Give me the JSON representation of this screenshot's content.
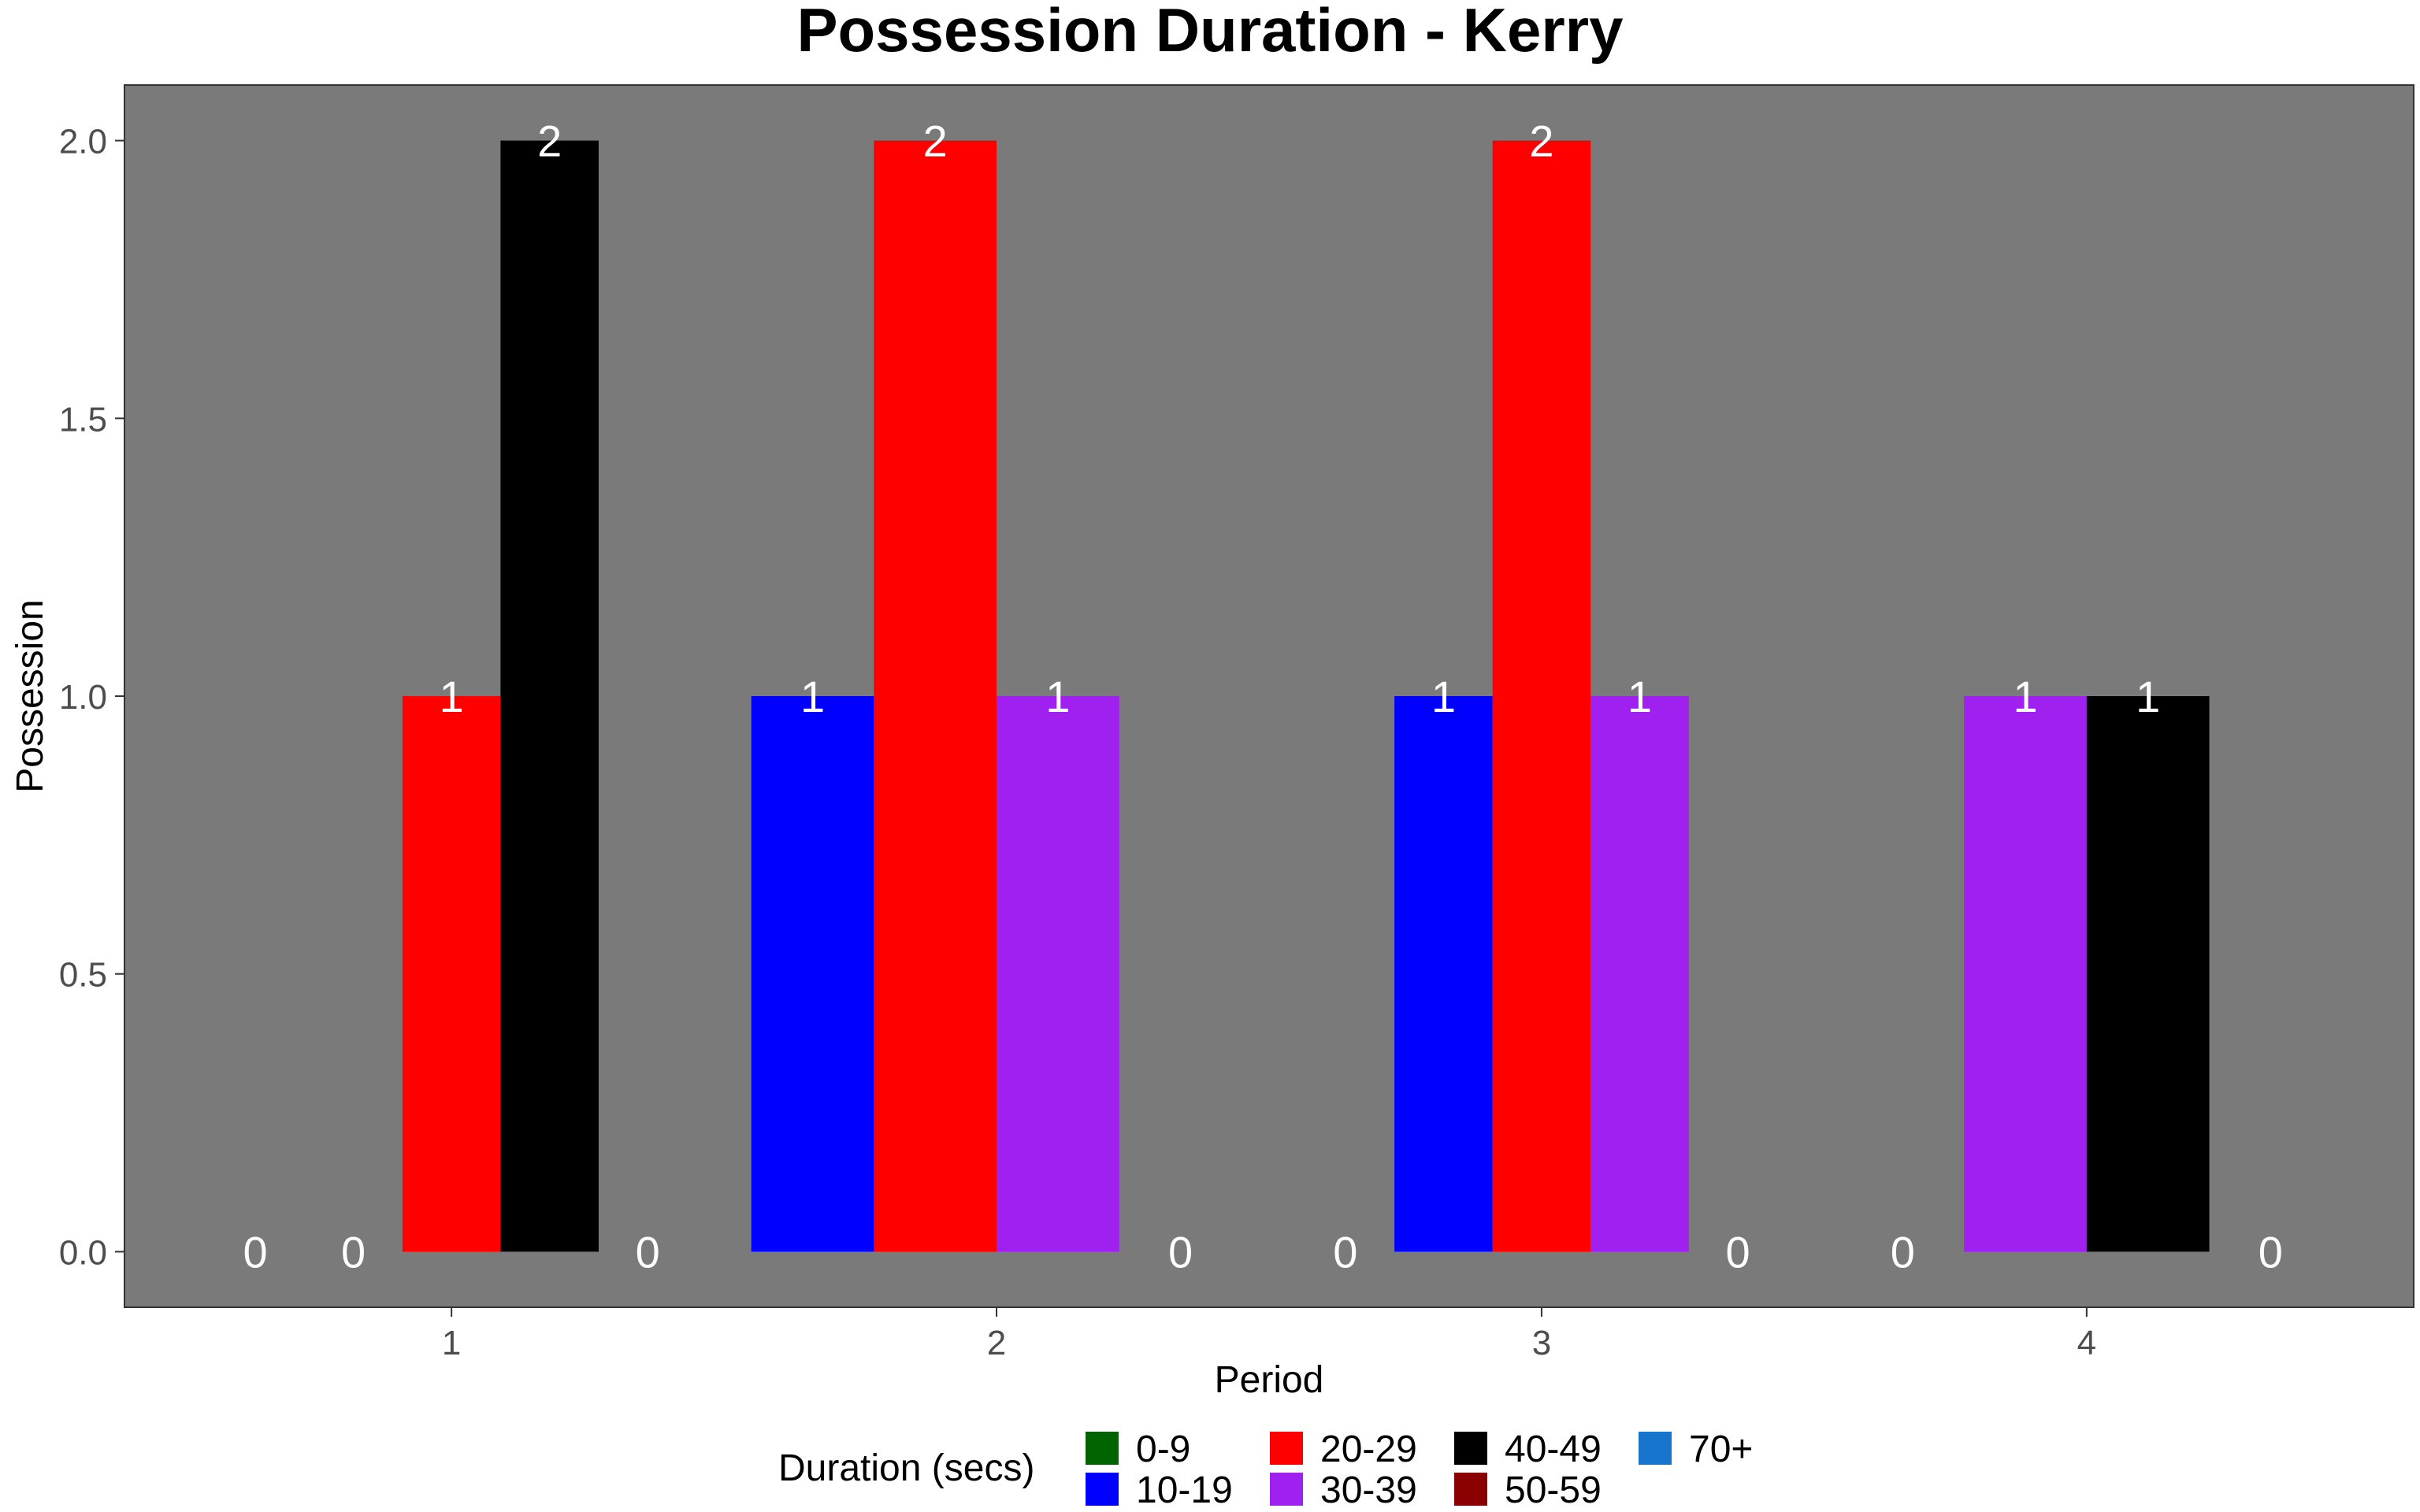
{
  "chart_data": {
    "type": "bar",
    "title": "Possession Duration - Kerry",
    "xlabel": "Period",
    "ylabel": "Possession",
    "categories": [
      "1",
      "2",
      "3",
      "4"
    ],
    "ylim": [
      -0.1,
      2.1
    ],
    "yticks": [
      "0.0",
      "0.5",
      "1.0",
      "1.5",
      "2.0"
    ],
    "grid": false,
    "panel_background": "#7a7a7a",
    "legend": {
      "title": "Duration (secs)",
      "position": "bottom"
    },
    "series": [
      {
        "name": "0-9",
        "color": "#006400",
        "values": [
          0,
          null,
          0,
          null
        ]
      },
      {
        "name": "10-19",
        "color": "#0000ff",
        "values": [
          null,
          1,
          1,
          null
        ]
      },
      {
        "name": "20-29",
        "color": "#ff0000",
        "values": [
          1,
          2,
          2,
          null
        ]
      },
      {
        "name": "30-39",
        "color": "#a020f0",
        "values": [
          null,
          1,
          1,
          1
        ]
      },
      {
        "name": "40-49",
        "color": "#000000",
        "values": [
          2,
          null,
          null,
          1
        ]
      },
      {
        "name": "50-59",
        "color": "#8b0000",
        "values": [
          null,
          0,
          null,
          null
        ]
      },
      {
        "name": "70+",
        "color": "#1874cd",
        "values": [
          0,
          null,
          0,
          0
        ]
      }
    ],
    "groups": [
      {
        "period": "1",
        "bars": [
          [
            "0-9",
            0
          ],
          [
            "70+",
            0
          ],
          [
            "20-29",
            1
          ],
          [
            "40-49",
            2
          ],
          [
            "0-9",
            0
          ]
        ]
      },
      {
        "period": "2",
        "bars": [
          [
            "10-19",
            1
          ],
          [
            "20-29",
            2
          ],
          [
            "30-39",
            1
          ],
          [
            "50-59",
            0
          ]
        ]
      },
      {
        "period": "3",
        "bars": [
          [
            "0-9",
            0
          ],
          [
            "10-19",
            1
          ],
          [
            "20-29",
            2
          ],
          [
            "30-39",
            1
          ],
          [
            "70+",
            0
          ]
        ]
      },
      {
        "period": "4",
        "bars": [
          [
            "0-9",
            0
          ],
          [
            "30-39",
            1
          ],
          [
            "40-49",
            1
          ],
          [
            "70+",
            0
          ]
        ]
      }
    ]
  }
}
